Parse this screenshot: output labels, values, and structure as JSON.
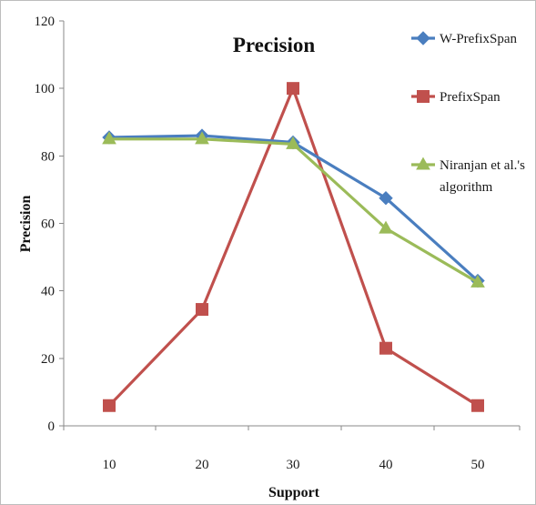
{
  "chart_data": {
    "type": "line",
    "title": "Precision",
    "xlabel": "Support",
    "ylabel": "Precision",
    "x": [
      10,
      20,
      30,
      40,
      50
    ],
    "xlim": [
      10,
      50
    ],
    "ylim": [
      0,
      120
    ],
    "yticks": [
      0,
      20,
      40,
      60,
      80,
      100,
      120
    ],
    "grid": false,
    "legend_position": "right",
    "series": [
      {
        "name": "W-PrefixSpan",
        "values": [
          85.5,
          86,
          84,
          67.5,
          43
        ],
        "color": "#4a7ebf",
        "marker": "diamond"
      },
      {
        "name": "PrefixSpan",
        "values": [
          6,
          34.5,
          100,
          23,
          6
        ],
        "color": "#c0504d",
        "marker": "square"
      },
      {
        "name": "Niranjan et al.'s algorithm",
        "legend_lines": [
          "Niranjan et al.'s",
          "algorithm"
        ],
        "values": [
          85,
          85,
          83.5,
          58.5,
          42.5
        ],
        "color": "#9bbb59",
        "marker": "triangle"
      }
    ]
  }
}
